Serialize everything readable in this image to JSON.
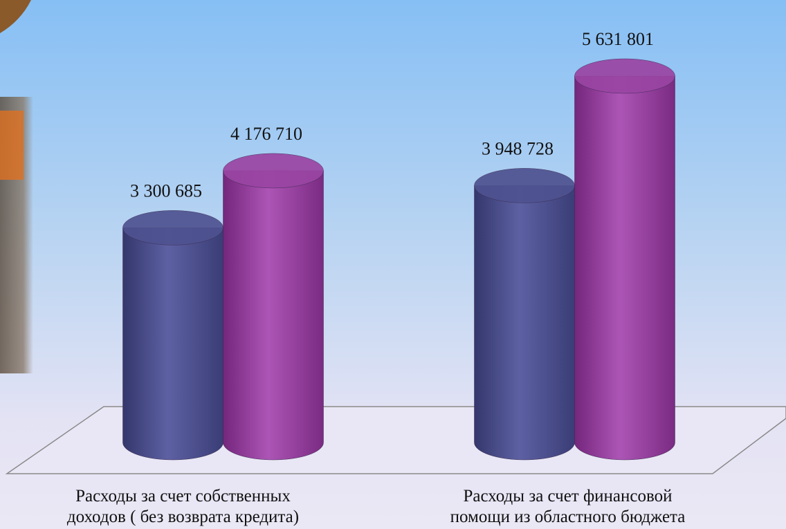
{
  "chart_data": {
    "type": "bar",
    "categories": [
      "Расходы за счет собственных\nдоходов ( без возврата кредита)",
      "Расходы за счет финансовой\nпомощи из областного бюджета"
    ],
    "series": [
      {
        "color": "#4e5290",
        "values": [
          3300685,
          3948728
        ],
        "value_labels": [
          "3 300 685",
          "3 948 728"
        ]
      },
      {
        "color": "#9a45a3",
        "values": [
          4176710,
          5631801
        ],
        "value_labels": [
          "4 176 710",
          "5 631 801"
        ]
      }
    ]
  }
}
